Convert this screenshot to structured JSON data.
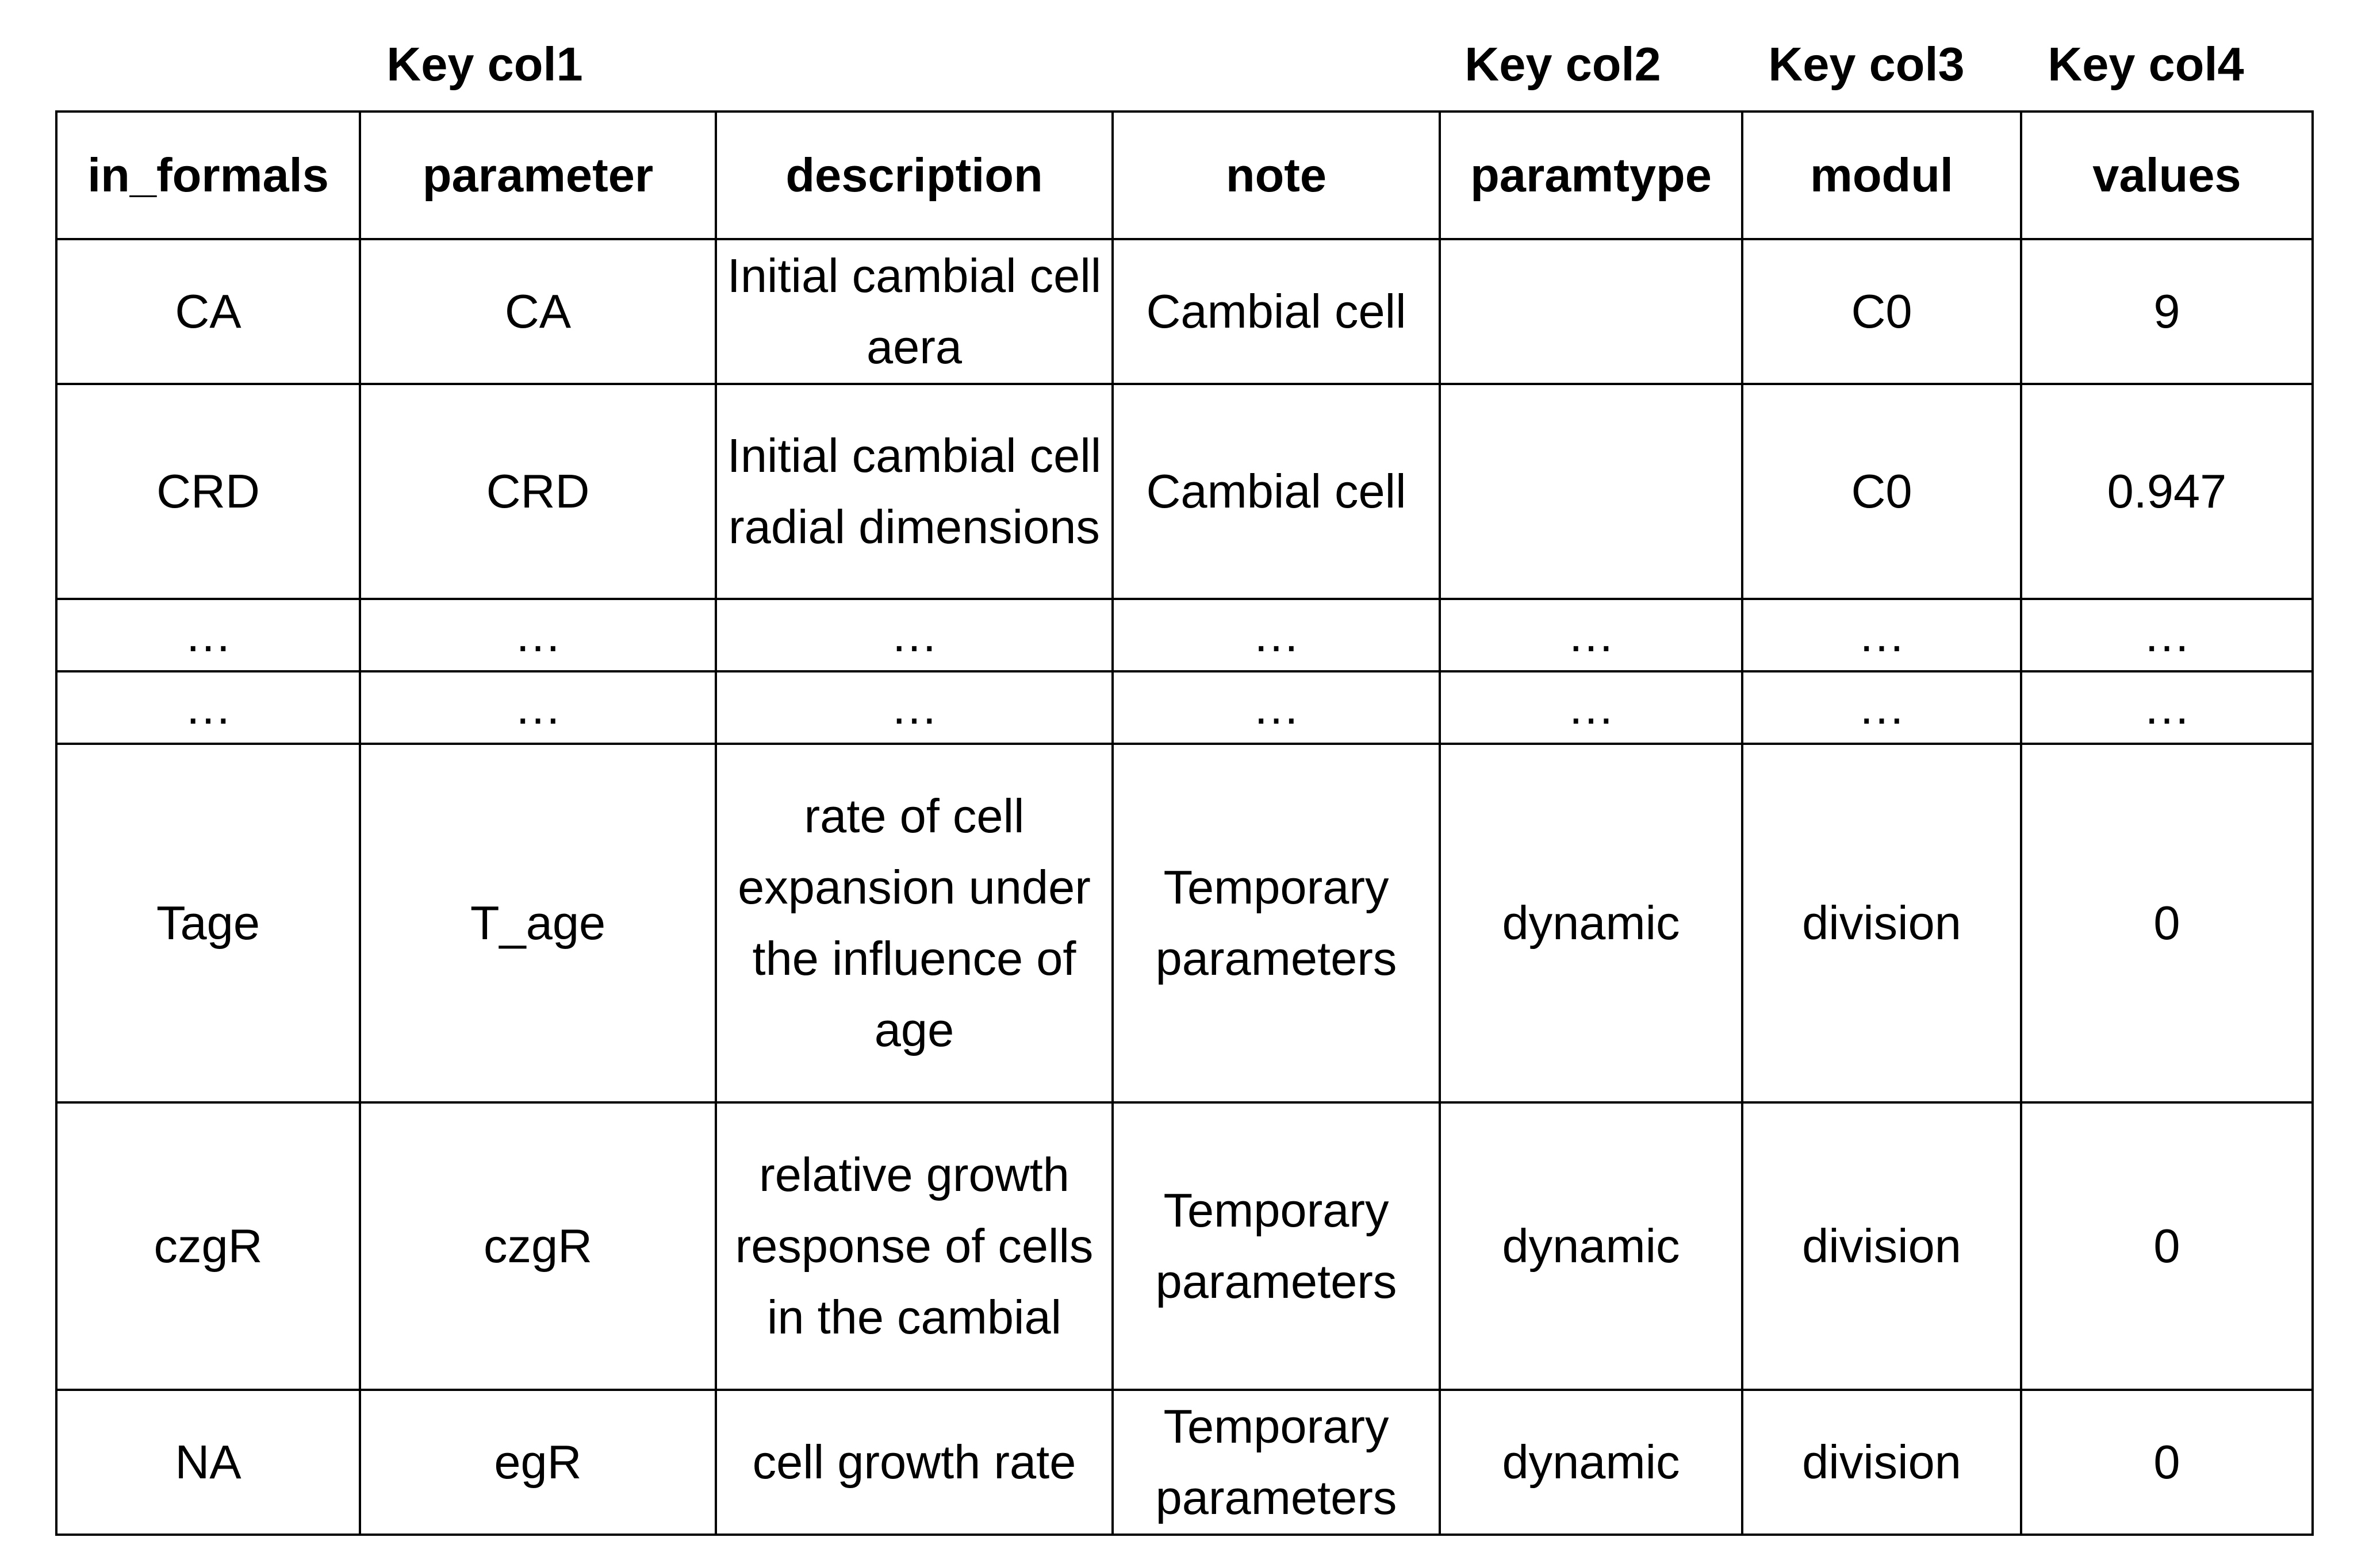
{
  "key_labels": {
    "col1": "Key col1",
    "col2": "Key col2",
    "col3": "Key col3",
    "col4": "Key col4"
  },
  "table": {
    "headers": [
      "in_formals",
      "parameter",
      "description",
      "note",
      "paramtype",
      "modul",
      "values"
    ],
    "rows": [
      [
        "CA",
        "CA",
        "Initial cambial cell aera",
        "Cambial cell",
        "",
        "C0",
        "9"
      ],
      [
        "CRD",
        "CRD",
        "Initial cambial cell radial dimensions",
        "Cambial cell",
        "",
        "C0",
        "0.947"
      ],
      [
        "…",
        "…",
        "…",
        "…",
        "…",
        "…",
        "…"
      ],
      [
        "…",
        "…",
        "…",
        "…",
        "…",
        "…",
        "…"
      ],
      [
        "Tage",
        "T_age",
        "rate of cell expansion under the influence of age",
        "Temporary parameters",
        "dynamic",
        "division",
        "0"
      ],
      [
        "czgR",
        "czgR",
        "relative growth response of cells in the cambial",
        "Temporary parameters",
        "dynamic",
        "division",
        "0"
      ],
      [
        "NA",
        "egR",
        "cell growth rate",
        "Temporary parameters",
        "dynamic",
        "division",
        "0"
      ]
    ]
  }
}
